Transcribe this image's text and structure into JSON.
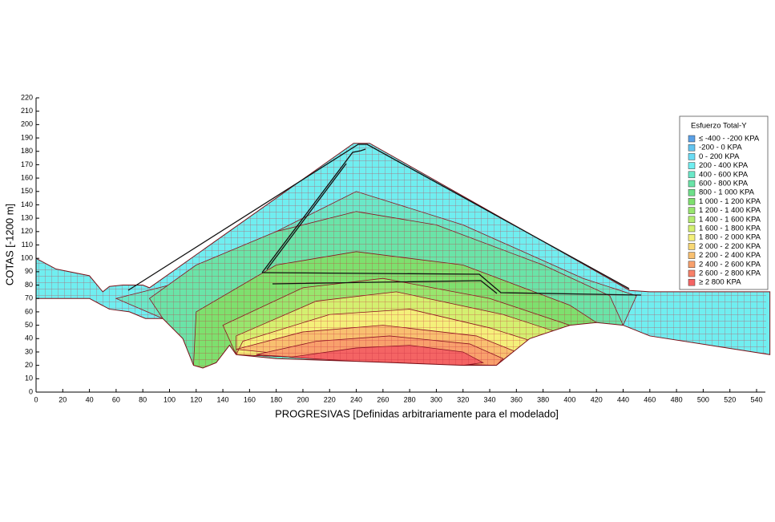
{
  "chart_data": {
    "type": "contour",
    "xlabel": "PROGRESIVAS [Definidas arbitrariamente para el modelado]",
    "ylabel": "COTAS [-1200 m]",
    "legend_title": "Esfuerzo Total-Y",
    "xlim": [
      0,
      550
    ],
    "xticks": [
      0,
      20,
      40,
      60,
      80,
      100,
      120,
      140,
      160,
      180,
      200,
      220,
      240,
      260,
      280,
      300,
      320,
      340,
      360,
      380,
      400,
      420,
      440,
      460,
      480,
      500,
      520,
      540
    ],
    "ylim": [
      0,
      220
    ],
    "yticks": [
      0,
      10,
      20,
      30,
      40,
      50,
      60,
      70,
      80,
      90,
      100,
      110,
      120,
      130,
      140,
      150,
      160,
      170,
      180,
      190,
      200,
      210,
      220
    ],
    "domain": [
      [
        0,
        100
      ],
      [
        15,
        92
      ],
      [
        40,
        87
      ],
      [
        50,
        75
      ],
      [
        55,
        79
      ],
      [
        65,
        80
      ],
      [
        80,
        80
      ],
      [
        85,
        78
      ],
      [
        238,
        186
      ],
      [
        250,
        186
      ],
      [
        445,
        76
      ],
      [
        460,
        75
      ],
      [
        550,
        75
      ],
      [
        550,
        28
      ],
      [
        460,
        42
      ],
      [
        440,
        50
      ],
      [
        420,
        52
      ],
      [
        400,
        50
      ],
      [
        385,
        45
      ],
      [
        370,
        40
      ],
      [
        345,
        20
      ],
      [
        320,
        20
      ],
      [
        240,
        23
      ],
      [
        180,
        25
      ],
      [
        150,
        28
      ],
      [
        145,
        35
      ],
      [
        135,
        22
      ],
      [
        125,
        18
      ],
      [
        118,
        20
      ],
      [
        110,
        40
      ],
      [
        95,
        55
      ],
      [
        82,
        55
      ],
      [
        70,
        60
      ],
      [
        55,
        62
      ],
      [
        40,
        70
      ],
      [
        0,
        70
      ]
    ],
    "series": [
      {
        "name": "≤ -400 - -200 KPA",
        "color": "#5aa0e6"
      },
      {
        "name": "-200 - 0 KPA",
        "color": "#62c4f0"
      },
      {
        "name": "0 - 200 KPA",
        "color": "#6adcf4"
      },
      {
        "name": "200 - 400 KPA",
        "color": "#70eef0"
      },
      {
        "name": "400 - 600 KPA",
        "color": "#6ae8c8",
        "points": [
          [
            60,
            70
          ],
          [
            100,
            80
          ],
          [
            160,
            110
          ],
          [
            240,
            150
          ],
          [
            320,
            125
          ],
          [
            410,
            85
          ],
          [
            450,
            72
          ],
          [
            440,
            50
          ],
          [
            345,
            20
          ],
          [
            125,
            18
          ],
          [
            95,
            55
          ]
        ]
      },
      {
        "name": "600 - 800 KPA",
        "color": "#6ae4a8",
        "points": [
          [
            85,
            70
          ],
          [
            120,
            95
          ],
          [
            180,
            120
          ],
          [
            240,
            135
          ],
          [
            300,
            125
          ],
          [
            380,
            95
          ],
          [
            430,
            72
          ],
          [
            440,
            50
          ],
          [
            400,
            50
          ],
          [
            345,
            20
          ],
          [
            150,
            28
          ],
          [
            135,
            22
          ],
          [
            118,
            20
          ],
          [
            95,
            55
          ]
        ]
      },
      {
        "name": "800 - 1 000 KPA",
        "color": "#6ee08a"
      },
      {
        "name": "1 000 - 1 200 KPA",
        "color": "#7ee06e",
        "points": [
          [
            120,
            60
          ],
          [
            180,
            95
          ],
          [
            240,
            105
          ],
          [
            320,
            95
          ],
          [
            400,
            65
          ],
          [
            420,
            52
          ],
          [
            345,
            20
          ],
          [
            150,
            28
          ],
          [
            135,
            22
          ],
          [
            125,
            18
          ],
          [
            118,
            20
          ]
        ]
      },
      {
        "name": "1 200 - 1 400 KPA",
        "color": "#98e66e",
        "points": [
          [
            140,
            50
          ],
          [
            200,
            78
          ],
          [
            260,
            85
          ],
          [
            340,
            70
          ],
          [
            400,
            50
          ],
          [
            345,
            20
          ],
          [
            150,
            28
          ]
        ]
      },
      {
        "name": "1 400 - 1 600 KPA",
        "color": "#b4ec70"
      },
      {
        "name": "1 600 - 1 800 KPA",
        "color": "#d4f070",
        "points": [
          [
            150,
            42
          ],
          [
            210,
            68
          ],
          [
            270,
            75
          ],
          [
            350,
            58
          ],
          [
            390,
            45
          ],
          [
            345,
            20
          ],
          [
            150,
            28
          ]
        ]
      },
      {
        "name": "1 800 - 2 000 KPA",
        "color": "#f4f07a",
        "points": [
          [
            155,
            38
          ],
          [
            220,
            58
          ],
          [
            280,
            62
          ],
          [
            340,
            48
          ],
          [
            372,
            38
          ],
          [
            345,
            20
          ],
          [
            150,
            28
          ]
        ]
      },
      {
        "name": "2 000 - 2 200 KPA",
        "color": "#f8d874"
      },
      {
        "name": "2 200 - 2 400 KPA",
        "color": "#f8c070",
        "points": [
          [
            150,
            32
          ],
          [
            200,
            45
          ],
          [
            260,
            50
          ],
          [
            330,
            42
          ],
          [
            360,
            30
          ],
          [
            345,
            20
          ],
          [
            240,
            23
          ]
        ]
      },
      {
        "name": "2 400 - 2 600 KPA",
        "color": "#f8a06c",
        "points": [
          [
            165,
            28
          ],
          [
            210,
            38
          ],
          [
            265,
            42
          ],
          [
            325,
            36
          ],
          [
            350,
            25
          ],
          [
            345,
            20
          ],
          [
            240,
            23
          ]
        ]
      },
      {
        "name": "2 600 - 2 800 KPA",
        "color": "#f88068"
      },
      {
        "name": "≥ 2 800 KPA",
        "color": "#f46464",
        "points": [
          [
            190,
            26
          ],
          [
            240,
            33
          ],
          [
            280,
            35
          ],
          [
            320,
            30
          ],
          [
            335,
            22
          ],
          [
            320,
            20
          ],
          [
            240,
            23
          ]
        ]
      }
    ]
  }
}
